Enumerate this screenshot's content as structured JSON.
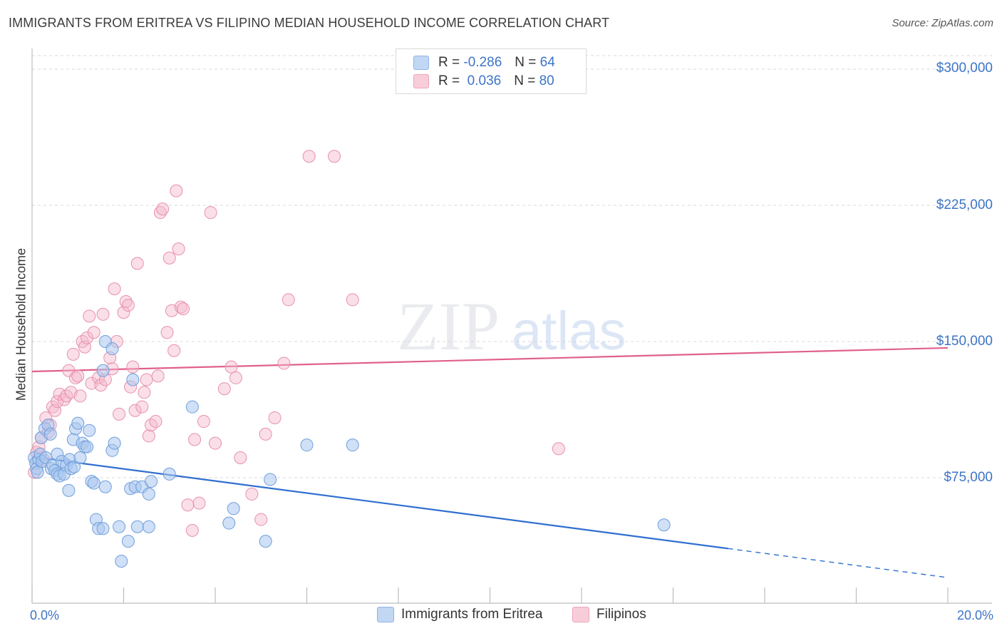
{
  "header": {
    "title": "IMMIGRANTS FROM ERITREA VS FILIPINO MEDIAN HOUSEHOLD INCOME CORRELATION CHART",
    "source": "Source: ZipAtlas.com"
  },
  "watermark": {
    "zip": "ZIP",
    "atlas": "atlas"
  },
  "legend_top": {
    "rows": [
      {
        "r_label": "R =",
        "r_value": "-0.286",
        "n_label": "N =",
        "n_value": "64",
        "color": "#a9c6ee"
      },
      {
        "r_label": "R =",
        "r_value": " 0.036",
        "n_label": "N =",
        "n_value": "80",
        "color": "#f5b8cb"
      }
    ]
  },
  "legend_bottom": {
    "items": [
      {
        "label": "Immigrants from Eritrea",
        "color": "#a9c6ee"
      },
      {
        "label": "Filipinos",
        "color": "#f5b8cb"
      }
    ]
  },
  "colors": {
    "blue_fill": "#a9c6ee",
    "blue_stroke": "#6f9fdc",
    "blue_line": "#2f6fd0",
    "pink_fill": "#f5b8cb",
    "pink_stroke": "#e890ac",
    "pink_line": "#e0608b",
    "grid": "#d8d8d8",
    "tick_text": "#3d74c7"
  },
  "chart_data": {
    "type": "scatter",
    "title": "IMMIGRANTS FROM ERITREA VS FILIPINO MEDIAN HOUSEHOLD INCOME CORRELATION CHART",
    "xlabel": "",
    "ylabel": "Median Household Income",
    "xlim": [
      0,
      20
    ],
    "ylim": [
      0,
      315000
    ],
    "x_tick_labels": [
      "0.0%",
      "20.0%"
    ],
    "y_ticks": [
      75000,
      150000,
      225000,
      300000
    ],
    "y_tick_labels": [
      "$75,000",
      "$150,000",
      "$225,000",
      "$300,000"
    ],
    "grid": true,
    "legend_position": "top-center",
    "series": [
      {
        "name": "Immigrants from Eritrea",
        "r": -0.286,
        "n": 64,
        "trend": {
          "x_start": 0,
          "y_start": 86500,
          "x_solid_end": 15.2,
          "y_solid_end": 36000,
          "x_end": 20,
          "y_end": 20000
        },
        "points": [
          [
            0.05,
            86000
          ],
          [
            0.08,
            83000
          ],
          [
            0.1,
            80000
          ],
          [
            0.12,
            78000
          ],
          [
            0.15,
            85000
          ],
          [
            0.18,
            88000
          ],
          [
            0.2,
            97000
          ],
          [
            0.22,
            84000
          ],
          [
            0.28,
            102000
          ],
          [
            0.3,
            86000
          ],
          [
            0.35,
            104000
          ],
          [
            0.4,
            99000
          ],
          [
            0.42,
            80000
          ],
          [
            0.45,
            82000
          ],
          [
            0.5,
            79000
          ],
          [
            0.55,
            77000
          ],
          [
            0.55,
            88000
          ],
          [
            0.6,
            76000
          ],
          [
            0.65,
            84000
          ],
          [
            0.7,
            77000
          ],
          [
            0.75,
            82000
          ],
          [
            0.8,
            68000
          ],
          [
            0.82,
            85000
          ],
          [
            0.85,
            80000
          ],
          [
            0.9,
            96000
          ],
          [
            0.92,
            81000
          ],
          [
            0.95,
            102000
          ],
          [
            1.0,
            105000
          ],
          [
            1.05,
            86000
          ],
          [
            1.1,
            94000
          ],
          [
            1.15,
            92000
          ],
          [
            1.2,
            92000
          ],
          [
            1.25,
            101000
          ],
          [
            1.3,
            73000
          ],
          [
            1.35,
            72000
          ],
          [
            1.4,
            52000
          ],
          [
            1.45,
            47000
          ],
          [
            1.55,
            47000
          ],
          [
            1.6,
            70000
          ],
          [
            1.55,
            134000
          ],
          [
            1.6,
            150000
          ],
          [
            1.75,
            90000
          ],
          [
            1.8,
            94000
          ],
          [
            1.75,
            146000
          ],
          [
            1.9,
            48000
          ],
          [
            1.95,
            29000
          ],
          [
            2.1,
            40000
          ],
          [
            2.15,
            69000
          ],
          [
            2.2,
            129000
          ],
          [
            2.25,
            70000
          ],
          [
            2.3,
            48000
          ],
          [
            2.4,
            70000
          ],
          [
            2.55,
            66000
          ],
          [
            2.55,
            48000
          ],
          [
            2.6,
            73000
          ],
          [
            3.0,
            77000
          ],
          [
            3.5,
            114000
          ],
          [
            4.3,
            50000
          ],
          [
            4.4,
            58000
          ],
          [
            5.1,
            40000
          ],
          [
            5.2,
            74000
          ],
          [
            6.0,
            93000
          ],
          [
            7.0,
            93000
          ],
          [
            13.8,
            49000
          ]
        ]
      },
      {
        "name": "Filipinos",
        "r": 0.036,
        "n": 80,
        "trend": {
          "x_start": 0,
          "y_start": 133500,
          "x_end": 20,
          "y_end": 146500
        },
        "points": [
          [
            0.05,
            78000
          ],
          [
            0.1,
            89000
          ],
          [
            0.15,
            92000
          ],
          [
            0.2,
            97000
          ],
          [
            0.25,
            85000
          ],
          [
            0.3,
            108000
          ],
          [
            0.35,
            100000
          ],
          [
            0.4,
            104000
          ],
          [
            0.45,
            114000
          ],
          [
            0.5,
            112000
          ],
          [
            0.55,
            117000
          ],
          [
            0.6,
            121000
          ],
          [
            0.7,
            118000
          ],
          [
            0.75,
            120000
          ],
          [
            0.8,
            134000
          ],
          [
            0.85,
            122000
          ],
          [
            0.9,
            143000
          ],
          [
            0.95,
            130000
          ],
          [
            1.0,
            131000
          ],
          [
            1.05,
            120000
          ],
          [
            1.1,
            150000
          ],
          [
            1.15,
            147000
          ],
          [
            1.2,
            152000
          ],
          [
            1.25,
            164000
          ],
          [
            1.3,
            127000
          ],
          [
            1.35,
            155000
          ],
          [
            1.45,
            130000
          ],
          [
            1.5,
            126000
          ],
          [
            1.55,
            165000
          ],
          [
            1.6,
            129000
          ],
          [
            1.7,
            141000
          ],
          [
            1.75,
            135000
          ],
          [
            1.8,
            179000
          ],
          [
            1.85,
            150000
          ],
          [
            1.9,
            110000
          ],
          [
            2.0,
            166000
          ],
          [
            2.05,
            172000
          ],
          [
            2.1,
            170000
          ],
          [
            2.15,
            125000
          ],
          [
            2.2,
            136000
          ],
          [
            2.25,
            112000
          ],
          [
            2.3,
            193000
          ],
          [
            2.4,
            114000
          ],
          [
            2.45,
            122000
          ],
          [
            2.5,
            129000
          ],
          [
            2.55,
            98000
          ],
          [
            2.6,
            104000
          ],
          [
            2.7,
            106000
          ],
          [
            2.75,
            131000
          ],
          [
            2.8,
            221000
          ],
          [
            2.85,
            223000
          ],
          [
            2.95,
            155000
          ],
          [
            3.0,
            196000
          ],
          [
            3.05,
            167000
          ],
          [
            3.1,
            145000
          ],
          [
            3.15,
            233000
          ],
          [
            3.2,
            201000
          ],
          [
            3.25,
            169000
          ],
          [
            3.3,
            168000
          ],
          [
            3.4,
            60000
          ],
          [
            3.5,
            46000
          ],
          [
            3.55,
            96000
          ],
          [
            3.65,
            61000
          ],
          [
            3.75,
            106000
          ],
          [
            3.9,
            221000
          ],
          [
            4.0,
            94000
          ],
          [
            4.2,
            124000
          ],
          [
            4.35,
            136000
          ],
          [
            4.45,
            130000
          ],
          [
            4.55,
            86000
          ],
          [
            4.8,
            66000
          ],
          [
            5.0,
            52000
          ],
          [
            5.1,
            99000
          ],
          [
            5.3,
            108000
          ],
          [
            5.5,
            138000
          ],
          [
            5.6,
            173000
          ],
          [
            6.05,
            252000
          ],
          [
            6.6,
            252000
          ],
          [
            7.0,
            173000
          ],
          [
            11.5,
            91000
          ]
        ]
      }
    ]
  }
}
